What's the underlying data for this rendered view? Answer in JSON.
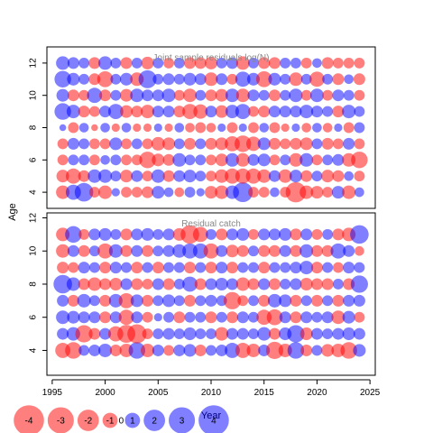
{
  "chart_data": {
    "type": "scatter",
    "ylabel": "Age",
    "xlabel": "Year",
    "x_ticks": [
      1995,
      2000,
      2005,
      2010,
      2015,
      2020,
      2025
    ],
    "xlim": [
      1994.5,
      2025.5
    ],
    "colors": {
      "positive": "#0000ff",
      "negative": "#ff0000"
    },
    "panels": [
      {
        "title": "Joint sample residuals log(N)",
        "ages": [
          4,
          5,
          6,
          7,
          8,
          9,
          10,
          11,
          12
        ],
        "ylim": [
          3.0,
          13.0
        ],
        "y_ticks": [
          4,
          6,
          8,
          10,
          12
        ],
        "years": [
          1996,
          1997,
          1998,
          1999,
          2000,
          2001,
          2002,
          2003,
          2004,
          2005,
          2006,
          2007,
          2008,
          2009,
          2010,
          2011,
          2012,
          2013,
          2014,
          2015,
          2016,
          2017,
          2018,
          2019,
          2020,
          2021,
          2022,
          2023,
          2024
        ],
        "residuals": [
          [
            -0.8,
            1.0,
            1.5,
            -0.5,
            -0.8,
            0.3,
            -0.5,
            -0.5,
            -0.6,
            0.7,
            0.4,
            -0.4,
            0.5,
            0.3,
            -0.7,
            -0.8,
            0.8,
            1.7,
            -0.5,
            -0.5,
            0.4,
            -0.5,
            -1.8,
            -0.8,
            -0.7,
            -0.5,
            0.7,
            -0.8,
            0.4
          ],
          [
            -0.7,
            -1.0,
            -0.6,
            0.8,
            0.8,
            0.5,
            -0.7,
            0.6,
            -0.5,
            0.8,
            -0.6,
            0.6,
            0.7,
            0.5,
            -0.5,
            -0.8,
            -1.0,
            -1.0,
            -1.0,
            -0.8,
            0.6,
            -0.8,
            0.7,
            -0.6,
            0.5,
            -0.7,
            -0.6,
            0.4,
            -0.5
          ],
          [
            -0.5,
            0.5,
            0.5,
            -0.5,
            0.4,
            0.5,
            -0.5,
            -0.5,
            -1.2,
            -0.7,
            -0.6,
            0.8,
            0.5,
            0.5,
            -0.5,
            -0.7,
            0.8,
            -0.8,
            0.6,
            0.7,
            -0.5,
            0.5,
            -0.8,
            0.8,
            -0.5,
            0.5,
            0.6,
            -0.8,
            -1.2
          ],
          [
            -0.5,
            0.6,
            0.5,
            -0.5,
            -0.5,
            0.7,
            -0.5,
            0.5,
            -0.5,
            -0.8,
            -0.7,
            0.5,
            -0.6,
            0.5,
            -0.6,
            -0.7,
            -1.0,
            -1.2,
            -0.9,
            0.7,
            -0.6,
            -0.5,
            -0.6,
            -0.7,
            0.5,
            -0.6,
            -0.5,
            0.6,
            -0.5
          ],
          [
            0.2,
            -0.5,
            0.4,
            -0.2,
            0.4,
            -0.3,
            0.4,
            -0.3,
            -0.3,
            0.3,
            -0.3,
            0.4,
            -0.4,
            -0.5,
            -0.4,
            0.3,
            -0.5,
            0.3,
            -0.5,
            0.4,
            -0.5,
            -0.3,
            0.3,
            -0.4,
            0.4,
            -0.4,
            0.3,
            -0.5,
            0.5
          ],
          [
            1.2,
            0.8,
            -0.6,
            -0.5,
            0.6,
            1.0,
            -0.7,
            -0.6,
            -0.8,
            0.6,
            0.6,
            -0.6,
            -1.0,
            -0.9,
            0.6,
            -0.7,
            0.8,
            1.0,
            -0.5,
            -0.6,
            0.6,
            0.6,
            0.6,
            0.8,
            0.6,
            0.5,
            -0.6,
            0.8,
            0.5
          ],
          [
            0.7,
            -0.6,
            -0.5,
            1.0,
            -0.6,
            0.5,
            -0.7,
            0.8,
            0.6,
            0.6,
            0.8,
            -0.5,
            -0.8,
            0.5,
            -0.6,
            -0.7,
            0.8,
            -0.8,
            0.6,
            0.5,
            -0.6,
            0.5,
            0.8,
            -0.5,
            0.8,
            -0.5,
            0.6,
            0.5,
            -0.5
          ],
          [
            1.2,
            0.7,
            0.5,
            -0.6,
            -1.1,
            0.5,
            0.7,
            -0.8,
            1.4,
            0.5,
            0.6,
            0.5,
            0.7,
            0.6,
            -0.8,
            0.6,
            -0.5,
            1.0,
            0.7,
            -1.1,
            0.7,
            0.5,
            -0.8,
            0.5,
            -1.0,
            0.5,
            -0.6,
            0.4,
            -0.6
          ],
          [
            0.8,
            0.6,
            0.5,
            -0.6,
            0.8,
            0.5,
            -0.6,
            0.5,
            -0.7,
            0.5,
            -0.5,
            0.5,
            -0.6,
            -0.6,
            -0.7,
            0.5,
            0.6,
            -0.8,
            0.5,
            -0.6,
            -0.6,
            0.5,
            0.5,
            -0.5,
            0.4,
            -0.6,
            -0.5,
            -0.5,
            -0.5
          ]
        ]
      },
      {
        "title": "Residual catch",
        "ages": [
          4,
          5,
          6,
          7,
          8,
          9,
          10,
          11
        ],
        "ylim": [
          2.5,
          12.3
        ],
        "y_ticks": [
          4,
          6,
          8,
          10,
          12
        ],
        "years": [
          1996,
          1997,
          1998,
          1999,
          2000,
          2001,
          2002,
          2003,
          2004,
          2005,
          2006,
          2007,
          2008,
          2009,
          2010,
          2011,
          2012,
          2013,
          2014,
          2015,
          2016,
          2017,
          2018,
          2019,
          2020,
          2021,
          2022,
          2023,
          2024
        ],
        "residuals": [
          [
            -1.0,
            -1.2,
            0.5,
            0.6,
            0.8,
            -0.6,
            -0.8,
            1.2,
            -0.8,
            0.6,
            -0.5,
            0.6,
            0.7,
            -0.6,
            0.5,
            0.6,
            1.0,
            -1.0,
            -0.8,
            0.6,
            -1.3,
            -0.8,
            1.2,
            -0.6,
            0.5,
            -0.7,
            -0.8,
            -1.2,
            0.7
          ],
          [
            0.6,
            0.8,
            -1.3,
            -0.6,
            0.6,
            -1.0,
            -1.4,
            -1.6,
            -0.5,
            0.5,
            0.6,
            0.5,
            0.7,
            0.5,
            0.5,
            -0.8,
            0.6,
            0.6,
            0.5,
            0.8,
            -0.6,
            0.7,
            1.3,
            -0.7,
            0.6,
            0.5,
            0.6,
            0.7,
            0.6
          ],
          [
            0.8,
            0.7,
            0.6,
            0.6,
            -0.6,
            0.6,
            -1.0,
            0.6,
            -0.5,
            0.3,
            0.5,
            -0.6,
            0.5,
            0.5,
            -0.6,
            0.5,
            -0.6,
            0.6,
            0.5,
            -1.0,
            -1.1,
            0.6,
            -0.6,
            0.6,
            0.5,
            0.6,
            -0.8,
            0.7,
            -0.5
          ],
          [
            0.6,
            -0.6,
            0.8,
            0.5,
            -0.6,
            0.8,
            -1.0,
            0.7,
            -0.6,
            0.5,
            0.7,
            0.5,
            -0.6,
            0.5,
            0.6,
            0.5,
            -1.3,
            -0.5,
            0.5,
            -0.6,
            0.8,
            0.7,
            -0.6,
            0.5,
            -0.6,
            0.5,
            -0.6,
            0.6,
            0.6
          ],
          [
            1.5,
            0.8,
            -0.6,
            -0.8,
            -0.6,
            -0.7,
            0.6,
            -0.6,
            -0.5,
            0.6,
            -0.6,
            0.5,
            1.0,
            -0.6,
            0.6,
            0.7,
            0.6,
            -0.8,
            -0.6,
            0.6,
            -0.6,
            0.5,
            0.6,
            -0.7,
            -0.6,
            -0.6,
            0.5,
            -0.6,
            1.3
          ],
          [
            -0.6,
            -0.5,
            0.6,
            0.5,
            -0.6,
            0.6,
            0.5,
            -0.6,
            0.5,
            -0.6,
            0.5,
            0.5,
            -0.6,
            0.5,
            -0.6,
            0.6,
            -0.6,
            0.5,
            0.5,
            -0.6,
            0.5,
            0.5,
            0.6,
            0.8,
            -0.6,
            0.5,
            -0.5,
            0.6,
            0.5
          ],
          [
            -0.8,
            0.6,
            -0.6,
            0.5,
            -1.0,
            0.8,
            -0.6,
            0.6,
            -0.6,
            0.5,
            0.6,
            0.8,
            1.0,
            1.0,
            -1.0,
            0.6,
            -0.7,
            -0.6,
            0.5,
            -0.6,
            -0.6,
            0.6,
            -0.6,
            0.8,
            -0.6,
            -0.6,
            1.0,
            0.6,
            -0.4
          ],
          [
            -0.8,
            1.2,
            -0.5,
            0.6,
            0.7,
            0.5,
            -0.6,
            0.6,
            0.7,
            0.5,
            0.6,
            -0.7,
            -1.5,
            -1.0,
            0.5,
            -0.6,
            0.6,
            0.7,
            -0.5,
            0.6,
            0.6,
            0.7,
            -0.6,
            0.6,
            -0.5,
            0.5,
            -0.6,
            -0.8,
            1.5
          ]
        ]
      }
    ],
    "legend": {
      "placement": "bottom-left",
      "values": [
        -4,
        -3,
        -2,
        -1,
        0,
        1,
        2,
        3,
        4
      ]
    }
  }
}
